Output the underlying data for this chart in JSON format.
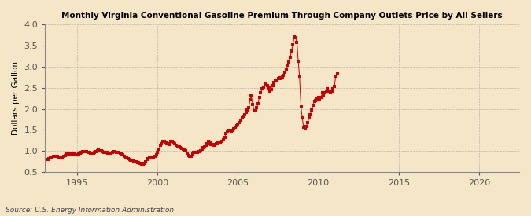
{
  "title": "Monthly Virginia Conventional Gasoline Premium Through Company Outlets Price by All Sellers",
  "ylabel": "Dollars per Gallon",
  "source": "Source: U.S. Energy Information Administration",
  "background_color": "#f5e6c8",
  "marker_color": "#cc0000",
  "line_color": "#cc0000",
  "xlim": [
    1993.0,
    2022.5
  ],
  "ylim": [
    0.5,
    4.0
  ],
  "xticks": [
    1995,
    2000,
    2005,
    2010,
    2015,
    2020
  ],
  "yticks": [
    0.5,
    1.0,
    1.5,
    2.0,
    2.5,
    3.0,
    3.5,
    4.0
  ],
  "data": [
    [
      1993.17,
      0.8
    ],
    [
      1993.25,
      0.82
    ],
    [
      1993.33,
      0.84
    ],
    [
      1993.42,
      0.85
    ],
    [
      1993.5,
      0.87
    ],
    [
      1993.58,
      0.88
    ],
    [
      1993.67,
      0.88
    ],
    [
      1993.75,
      0.87
    ],
    [
      1993.83,
      0.86
    ],
    [
      1993.92,
      0.85
    ],
    [
      1994.0,
      0.85
    ],
    [
      1994.08,
      0.86
    ],
    [
      1994.17,
      0.88
    ],
    [
      1994.25,
      0.9
    ],
    [
      1994.33,
      0.92
    ],
    [
      1994.42,
      0.93
    ],
    [
      1994.5,
      0.94
    ],
    [
      1994.58,
      0.93
    ],
    [
      1994.67,
      0.93
    ],
    [
      1994.75,
      0.93
    ],
    [
      1994.83,
      0.92
    ],
    [
      1994.92,
      0.91
    ],
    [
      1995.0,
      0.91
    ],
    [
      1995.08,
      0.92
    ],
    [
      1995.17,
      0.94
    ],
    [
      1995.25,
      0.97
    ],
    [
      1995.33,
      0.99
    ],
    [
      1995.42,
      0.99
    ],
    [
      1995.5,
      0.98
    ],
    [
      1995.58,
      0.98
    ],
    [
      1995.67,
      0.97
    ],
    [
      1995.75,
      0.96
    ],
    [
      1995.83,
      0.95
    ],
    [
      1995.92,
      0.95
    ],
    [
      1996.0,
      0.95
    ],
    [
      1996.08,
      0.97
    ],
    [
      1996.17,
      0.99
    ],
    [
      1996.25,
      1.01
    ],
    [
      1996.33,
      1.02
    ],
    [
      1996.42,
      1.01
    ],
    [
      1996.5,
      1.0
    ],
    [
      1996.58,
      0.99
    ],
    [
      1996.67,
      0.97
    ],
    [
      1996.75,
      0.96
    ],
    [
      1996.83,
      0.96
    ],
    [
      1996.92,
      0.95
    ],
    [
      1997.0,
      0.95
    ],
    [
      1997.08,
      0.95
    ],
    [
      1997.17,
      0.97
    ],
    [
      1997.25,
      0.98
    ],
    [
      1997.33,
      0.98
    ],
    [
      1997.42,
      0.97
    ],
    [
      1997.5,
      0.97
    ],
    [
      1997.58,
      0.96
    ],
    [
      1997.67,
      0.95
    ],
    [
      1997.75,
      0.93
    ],
    [
      1997.83,
      0.91
    ],
    [
      1997.92,
      0.88
    ],
    [
      1998.0,
      0.85
    ],
    [
      1998.08,
      0.83
    ],
    [
      1998.17,
      0.82
    ],
    [
      1998.25,
      0.8
    ],
    [
      1998.33,
      0.78
    ],
    [
      1998.42,
      0.77
    ],
    [
      1998.5,
      0.76
    ],
    [
      1998.58,
      0.75
    ],
    [
      1998.67,
      0.74
    ],
    [
      1998.75,
      0.73
    ],
    [
      1998.83,
      0.72
    ],
    [
      1998.92,
      0.71
    ],
    [
      1999.0,
      0.69
    ],
    [
      1999.08,
      0.69
    ],
    [
      1999.17,
      0.71
    ],
    [
      1999.25,
      0.75
    ],
    [
      1999.33,
      0.79
    ],
    [
      1999.42,
      0.81
    ],
    [
      1999.5,
      0.83
    ],
    [
      1999.58,
      0.84
    ],
    [
      1999.67,
      0.86
    ],
    [
      1999.75,
      0.86
    ],
    [
      1999.83,
      0.87
    ],
    [
      1999.92,
      0.91
    ],
    [
      2000.0,
      0.97
    ],
    [
      2000.08,
      1.04
    ],
    [
      2000.17,
      1.13
    ],
    [
      2000.25,
      1.18
    ],
    [
      2000.33,
      1.22
    ],
    [
      2000.42,
      1.23
    ],
    [
      2000.5,
      1.2
    ],
    [
      2000.58,
      1.18
    ],
    [
      2000.67,
      1.17
    ],
    [
      2000.75,
      1.16
    ],
    [
      2000.83,
      1.22
    ],
    [
      2000.92,
      1.23
    ],
    [
      2001.0,
      1.2
    ],
    [
      2001.08,
      1.17
    ],
    [
      2001.17,
      1.13
    ],
    [
      2001.25,
      1.11
    ],
    [
      2001.33,
      1.1
    ],
    [
      2001.42,
      1.07
    ],
    [
      2001.5,
      1.06
    ],
    [
      2001.58,
      1.04
    ],
    [
      2001.67,
      1.02
    ],
    [
      2001.75,
      1.0
    ],
    [
      2001.83,
      0.94
    ],
    [
      2001.92,
      0.9
    ],
    [
      2002.0,
      0.87
    ],
    [
      2002.08,
      0.88
    ],
    [
      2002.17,
      0.92
    ],
    [
      2002.25,
      0.96
    ],
    [
      2002.33,
      0.97
    ],
    [
      2002.42,
      0.96
    ],
    [
      2002.5,
      0.97
    ],
    [
      2002.58,
      0.99
    ],
    [
      2002.67,
      1.01
    ],
    [
      2002.75,
      1.04
    ],
    [
      2002.83,
      1.07
    ],
    [
      2002.92,
      1.1
    ],
    [
      2003.0,
      1.13
    ],
    [
      2003.08,
      1.18
    ],
    [
      2003.17,
      1.22
    ],
    [
      2003.25,
      1.19
    ],
    [
      2003.33,
      1.16
    ],
    [
      2003.42,
      1.15
    ],
    [
      2003.5,
      1.14
    ],
    [
      2003.58,
      1.15
    ],
    [
      2003.67,
      1.17
    ],
    [
      2003.75,
      1.19
    ],
    [
      2003.83,
      1.2
    ],
    [
      2003.92,
      1.2
    ],
    [
      2004.0,
      1.23
    ],
    [
      2004.08,
      1.27
    ],
    [
      2004.17,
      1.32
    ],
    [
      2004.25,
      1.42
    ],
    [
      2004.33,
      1.47
    ],
    [
      2004.42,
      1.49
    ],
    [
      2004.5,
      1.48
    ],
    [
      2004.58,
      1.47
    ],
    [
      2004.67,
      1.48
    ],
    [
      2004.75,
      1.52
    ],
    [
      2004.83,
      1.57
    ],
    [
      2004.92,
      1.6
    ],
    [
      2005.0,
      1.62
    ],
    [
      2005.08,
      1.67
    ],
    [
      2005.17,
      1.73
    ],
    [
      2005.25,
      1.78
    ],
    [
      2005.33,
      1.82
    ],
    [
      2005.42,
      1.87
    ],
    [
      2005.5,
      1.92
    ],
    [
      2005.58,
      1.97
    ],
    [
      2005.67,
      2.02
    ],
    [
      2005.75,
      2.22
    ],
    [
      2005.83,
      2.3
    ],
    [
      2005.92,
      2.1
    ],
    [
      2006.0,
      1.96
    ],
    [
      2006.08,
      1.96
    ],
    [
      2006.17,
      2.02
    ],
    [
      2006.25,
      2.13
    ],
    [
      2006.33,
      2.28
    ],
    [
      2006.42,
      2.38
    ],
    [
      2006.5,
      2.48
    ],
    [
      2006.58,
      2.52
    ],
    [
      2006.67,
      2.57
    ],
    [
      2006.75,
      2.6
    ],
    [
      2006.83,
      2.55
    ],
    [
      2006.92,
      2.5
    ],
    [
      2007.0,
      2.4
    ],
    [
      2007.08,
      2.45
    ],
    [
      2007.17,
      2.55
    ],
    [
      2007.25,
      2.62
    ],
    [
      2007.33,
      2.67
    ],
    [
      2007.42,
      2.67
    ],
    [
      2007.5,
      2.72
    ],
    [
      2007.58,
      2.73
    ],
    [
      2007.67,
      2.71
    ],
    [
      2007.75,
      2.76
    ],
    [
      2007.83,
      2.8
    ],
    [
      2007.92,
      2.87
    ],
    [
      2008.0,
      2.92
    ],
    [
      2008.08,
      3.03
    ],
    [
      2008.17,
      3.12
    ],
    [
      2008.25,
      3.22
    ],
    [
      2008.33,
      3.38
    ],
    [
      2008.42,
      3.52
    ],
    [
      2008.5,
      3.73
    ],
    [
      2008.58,
      3.68
    ],
    [
      2008.67,
      3.58
    ],
    [
      2008.75,
      3.13
    ],
    [
      2008.83,
      2.77
    ],
    [
      2008.92,
      2.05
    ],
    [
      2009.0,
      1.78
    ],
    [
      2009.08,
      1.57
    ],
    [
      2009.17,
      1.52
    ],
    [
      2009.25,
      1.58
    ],
    [
      2009.33,
      1.68
    ],
    [
      2009.42,
      1.78
    ],
    [
      2009.5,
      1.87
    ],
    [
      2009.58,
      1.98
    ],
    [
      2009.67,
      2.08
    ],
    [
      2009.75,
      2.18
    ],
    [
      2009.83,
      2.19
    ],
    [
      2009.92,
      2.23
    ],
    [
      2010.0,
      2.28
    ],
    [
      2010.08,
      2.23
    ],
    [
      2010.17,
      2.28
    ],
    [
      2010.25,
      2.38
    ],
    [
      2010.33,
      2.32
    ],
    [
      2010.42,
      2.38
    ],
    [
      2010.5,
      2.43
    ],
    [
      2010.58,
      2.48
    ],
    [
      2010.67,
      2.43
    ],
    [
      2010.75,
      2.38
    ],
    [
      2010.83,
      2.43
    ],
    [
      2010.92,
      2.48
    ],
    [
      2011.0,
      2.53
    ],
    [
      2011.08,
      2.78
    ],
    [
      2011.17,
      2.84
    ]
  ]
}
